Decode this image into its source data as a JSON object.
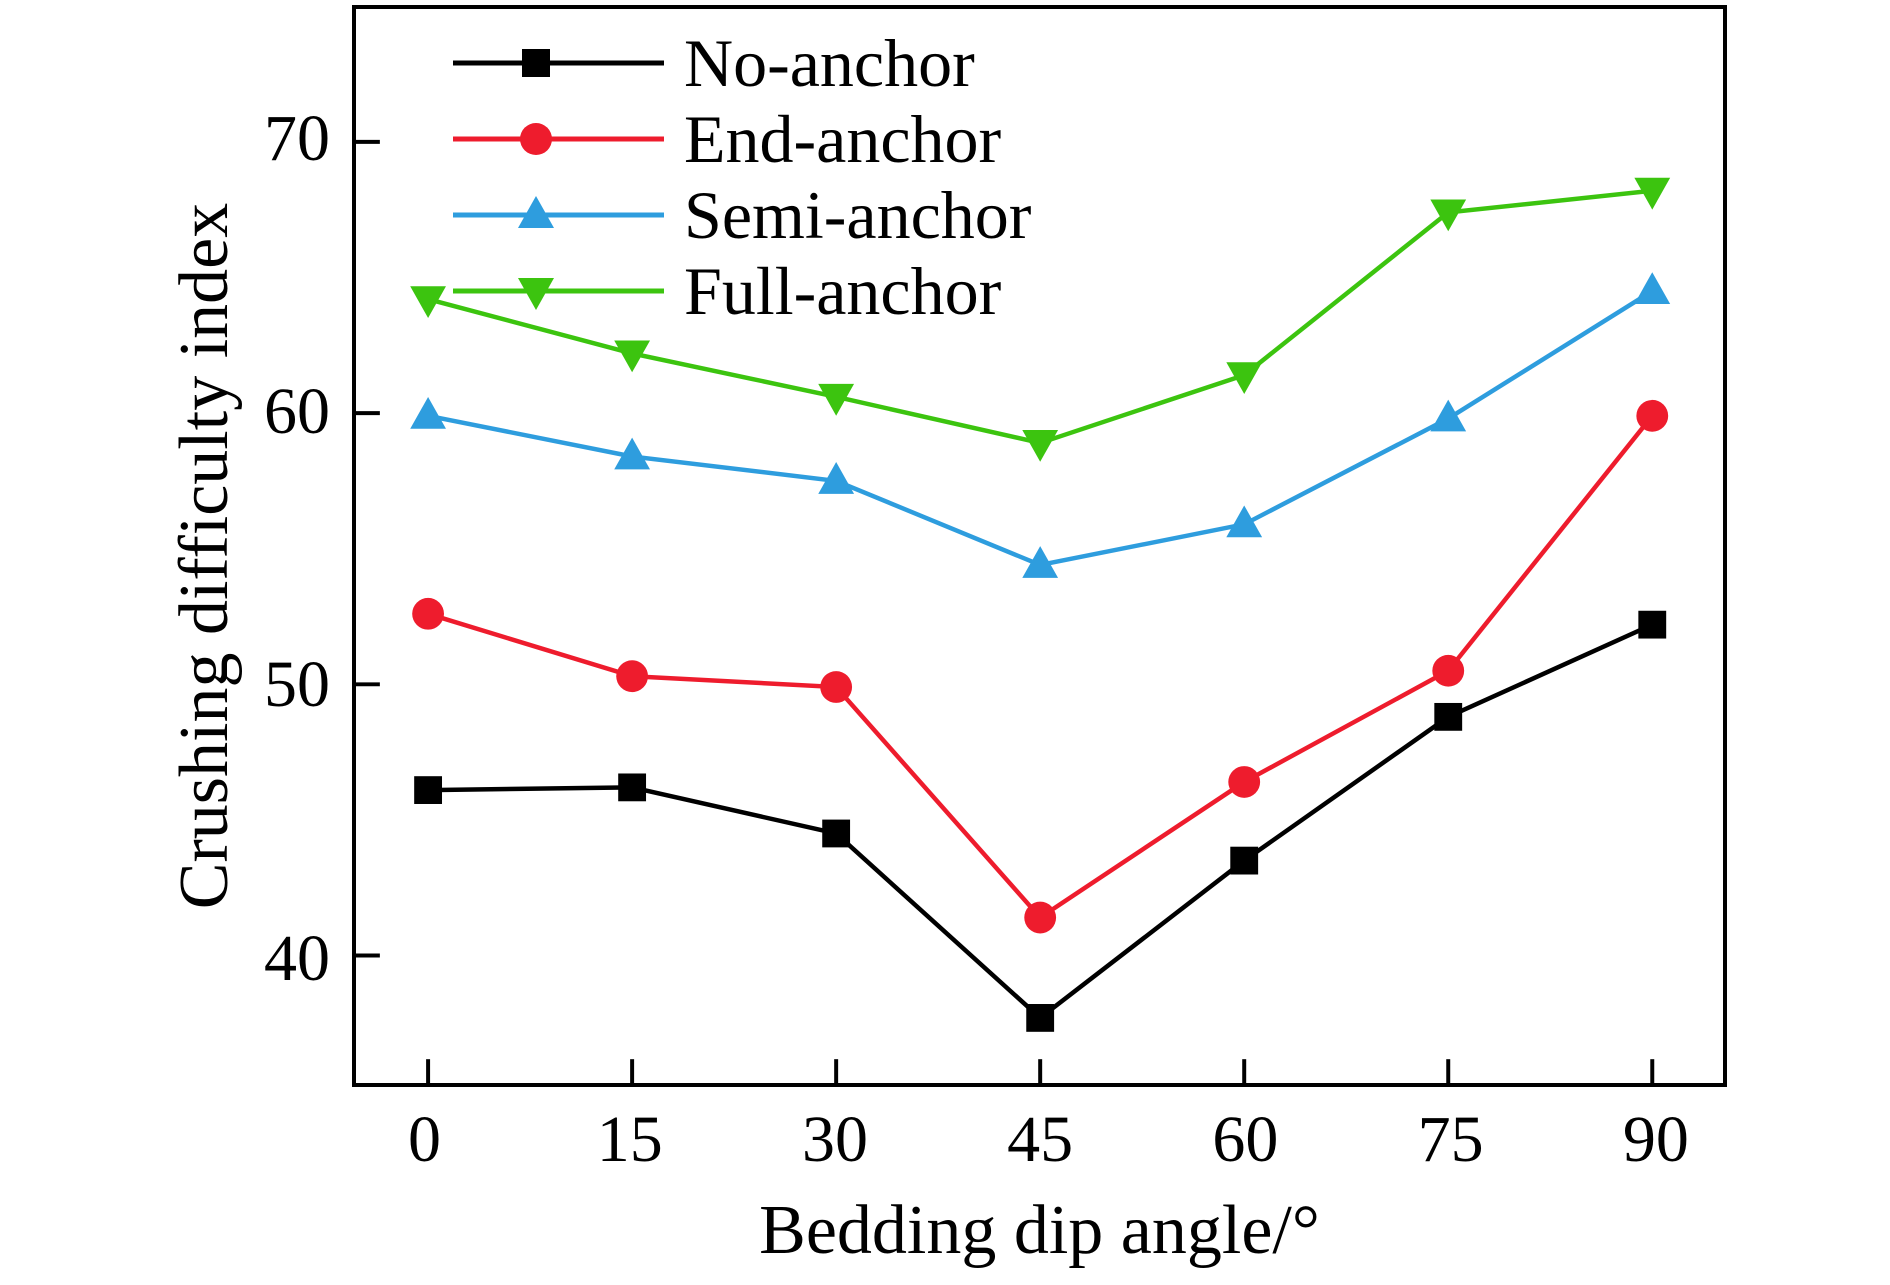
{
  "chart_data": {
    "type": "line",
    "title": "",
    "xlabel": "Bedding dip angle/°",
    "ylabel": "Crushing difficulty index",
    "x": [
      0,
      15,
      30,
      45,
      60,
      75,
      90
    ],
    "xticks": [
      "0",
      "15",
      "30",
      "45",
      "60",
      "75",
      "90"
    ],
    "yticks": [
      "40",
      "50",
      "60",
      "70"
    ],
    "ytick_values": [
      40,
      50,
      60,
      70
    ],
    "xlim": [
      -5.3,
      95.2
    ],
    "ylim": [
      35.3,
      74.9
    ],
    "grid": false,
    "legend_position": "top-left",
    "axis_color": "#000000",
    "background_color": "#ffffff",
    "series": [
      {
        "name": "No-anchor",
        "marker": "square",
        "color": "#000000",
        "values": [
          46.1,
          46.2,
          44.5,
          37.7,
          43.5,
          48.8,
          52.2
        ]
      },
      {
        "name": "End-anchor",
        "marker": "circle",
        "color": "#ee1c2d",
        "values": [
          52.6,
          50.3,
          49.9,
          41.4,
          46.4,
          50.5,
          59.9
        ]
      },
      {
        "name": "Semi-anchor",
        "marker": "triangle-up",
        "color": "#2e9dde",
        "values": [
          59.9,
          58.4,
          57.5,
          54.4,
          55.9,
          59.8,
          64.5
        ]
      },
      {
        "name": "Full-anchor",
        "marker": "triangle-down",
        "color": "#3cc40f",
        "values": [
          64.2,
          62.2,
          60.6,
          58.9,
          61.4,
          67.4,
          68.2
        ]
      }
    ]
  }
}
